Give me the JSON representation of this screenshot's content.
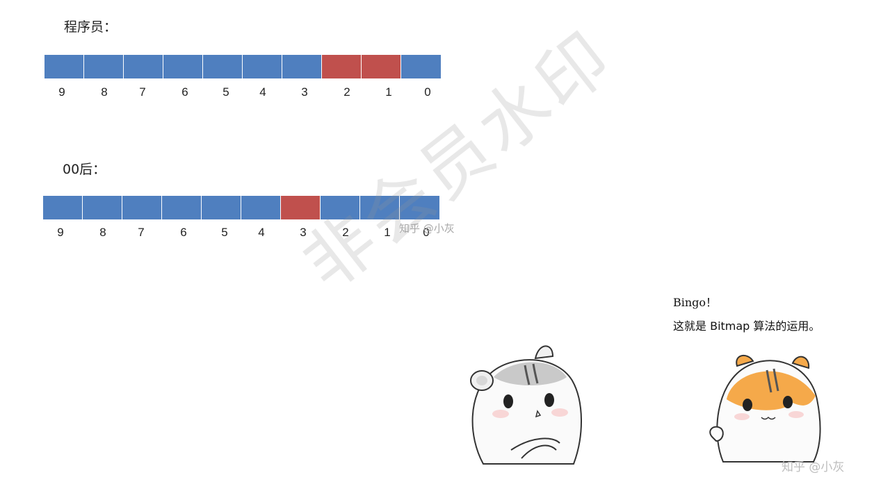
{
  "programmer": {
    "label": "程序员：",
    "bits": [
      {
        "index": "9",
        "set": false
      },
      {
        "index": "8",
        "set": false
      },
      {
        "index": "7",
        "set": false
      },
      {
        "index": "6",
        "set": false
      },
      {
        "index": "5",
        "set": false
      },
      {
        "index": "4",
        "set": false
      },
      {
        "index": "3",
        "set": false
      },
      {
        "index": "2",
        "set": true
      },
      {
        "index": "1",
        "set": true
      },
      {
        "index": "0",
        "set": false
      }
    ]
  },
  "post00": {
    "label": "00后：",
    "bits": [
      {
        "index": "9",
        "set": false
      },
      {
        "index": "8",
        "set": false
      },
      {
        "index": "7",
        "set": false
      },
      {
        "index": "6",
        "set": false
      },
      {
        "index": "5",
        "set": false
      },
      {
        "index": "4",
        "set": false
      },
      {
        "index": "3",
        "set": true
      },
      {
        "index": "2",
        "set": false
      },
      {
        "index": "1",
        "set": false
      },
      {
        "index": "0",
        "set": false
      }
    ]
  },
  "colors": {
    "unset": "#4f7fbf",
    "set": "#c0504d"
  },
  "watermarks": {
    "zhihu_top": "知乎 @小灰",
    "zhihu_bottom": "知乎 @小灰",
    "big": "非会员水印"
  },
  "caption": {
    "line1": "Bingo！",
    "line2": "这就是 Bitmap 算法的运用。"
  },
  "illustration": {
    "left": "gray-hamster",
    "right": "orange-hamster"
  }
}
